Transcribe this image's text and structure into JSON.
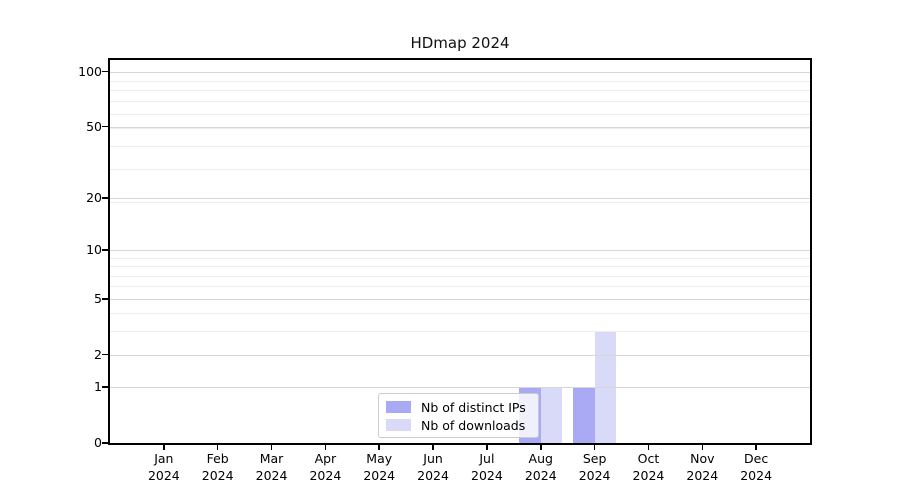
{
  "chart_data": {
    "type": "bar",
    "title": "HDmap 2024",
    "categories": [
      "Jan 2024",
      "Feb 2024",
      "Mar 2024",
      "Apr 2024",
      "May 2024",
      "Jun 2024",
      "Jul 2024",
      "Aug 2024",
      "Sep 2024",
      "Oct 2024",
      "Nov 2024",
      "Dec 2024"
    ],
    "series": [
      {
        "name": "Nb of distinct IPs",
        "color": "#a9a9f4",
        "values": [
          0,
          0,
          0,
          0,
          0,
          0,
          0,
          1,
          1,
          0,
          0,
          0
        ]
      },
      {
        "name": "Nb of downloads",
        "color": "#d9d9f8",
        "values": [
          0,
          0,
          0,
          0,
          0,
          0,
          0,
          1,
          3,
          0,
          0,
          0
        ]
      }
    ],
    "y_axis": {
      "scale": "log1p",
      "tick_values": [
        0,
        1,
        2,
        5,
        10,
        20,
        50,
        100
      ],
      "tick_labels": [
        "0",
        "1",
        "2",
        "5",
        "10",
        "20",
        "50",
        "100"
      ],
      "minor_gridline_values": [
        3,
        4,
        6,
        7,
        8,
        9,
        19,
        29,
        39,
        49,
        59,
        69,
        79,
        89
      ],
      "ymin": 0,
      "ymax": 115.7
    },
    "x_axis": {
      "label": "",
      "year_line": "2024"
    },
    "legend": {
      "position": "lower center",
      "frame": true
    },
    "grid": "horizontal, major and minor, drawn over bars"
  }
}
